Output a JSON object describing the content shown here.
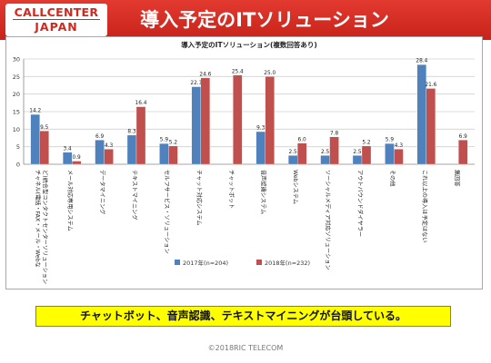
{
  "header": {
    "logo_line1": "CALLCENTER",
    "logo_line2": "JAPAN",
    "title": "導入予定のITソリューション"
  },
  "chart_data": {
    "type": "bar",
    "title": "導入予定のITソリューション(複数回答あり)",
    "xlabel": "",
    "ylabel": "",
    "ylim": [
      0,
      30
    ],
    "yticks": [
      0,
      5,
      10,
      15,
      20,
      25,
      30
    ],
    "grid": true,
    "legend_position": "bottom",
    "categories": [
      "チャネル(電話・FAX・メール・Webなど)統合型コンタクトセンターソリューション",
      "メール対応専用システム",
      "データマイニング",
      "テキストマイニング",
      "セルフサービス・ソリューション",
      "チャット対応システム",
      "チャットボット",
      "音声認識システム",
      "Webシステム",
      "ソーシャルメディア対応ソリューション",
      "アウトバウンドダイヤラー",
      "その他",
      "これ以上の導入は予定はない",
      "無回答"
    ],
    "series": [
      {
        "name": "2017年(n=204)",
        "color": "#4f81bd",
        "values": [
          14.2,
          3.4,
          6.9,
          8.3,
          5.9,
          22.1,
          null,
          9.3,
          2.5,
          2.5,
          2.5,
          5.9,
          28.4,
          null
        ]
      },
      {
        "name": "2018年(n=232)",
        "color": "#c0504d",
        "values": [
          9.5,
          0.9,
          4.3,
          16.4,
          5.2,
          24.6,
          25.4,
          25.0,
          6.0,
          7.8,
          5.2,
          4.3,
          21.6,
          6.9
        ]
      }
    ]
  },
  "summary": "チャットボット、音声認識、テキストマイニングが台頭している。",
  "copyright": "©2018RIC TELECOM"
}
